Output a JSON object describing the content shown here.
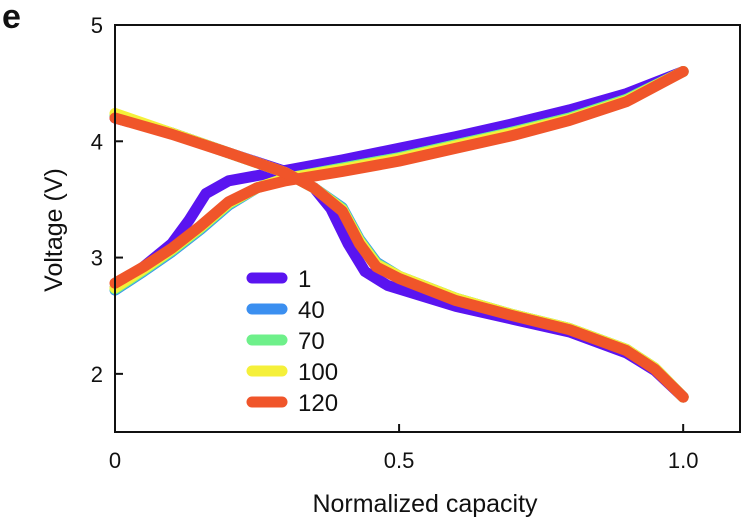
{
  "panel_label": "e",
  "chart_data": {
    "type": "line",
    "title": "",
    "xlabel": "Normalized capacity",
    "ylabel": "Voltage (V)",
    "xlim": [
      0,
      1.1
    ],
    "ylim": [
      1.5,
      5.0
    ],
    "xticks": [
      0,
      0.5,
      1.0
    ],
    "xtick_labels": [
      "0",
      "0.5",
      "1.0"
    ],
    "yticks": [
      2,
      3,
      4,
      5
    ],
    "ytick_labels": [
      "2",
      "3",
      "4",
      "5"
    ],
    "grid": false,
    "legend_position": "lower-left",
    "series": [
      {
        "name": "1",
        "color": "#5a14f0",
        "charge": [
          [
            0,
            2.74
          ],
          [
            0.05,
            2.92
          ],
          [
            0.1,
            3.12
          ],
          [
            0.13,
            3.32
          ],
          [
            0.16,
            3.55
          ],
          [
            0.2,
            3.66
          ],
          [
            0.3,
            3.75
          ],
          [
            0.4,
            3.84
          ],
          [
            0.5,
            3.94
          ],
          [
            0.6,
            4.04
          ],
          [
            0.7,
            4.15
          ],
          [
            0.8,
            4.27
          ],
          [
            0.9,
            4.41
          ],
          [
            1.0,
            4.6
          ]
        ],
        "discharge": [
          [
            0,
            4.2
          ],
          [
            0.1,
            4.07
          ],
          [
            0.2,
            3.9
          ],
          [
            0.3,
            3.74
          ],
          [
            0.35,
            3.6
          ],
          [
            0.38,
            3.42
          ],
          [
            0.41,
            3.12
          ],
          [
            0.44,
            2.88
          ],
          [
            0.48,
            2.76
          ],
          [
            0.6,
            2.58
          ],
          [
            0.7,
            2.47
          ],
          [
            0.8,
            2.36
          ],
          [
            0.9,
            2.18
          ],
          [
            0.95,
            2.03
          ],
          [
            1.0,
            1.8
          ]
        ]
      },
      {
        "name": "40",
        "color": "#3b8ff0",
        "charge": [
          [
            0,
            2.72
          ],
          [
            0.05,
            2.88
          ],
          [
            0.1,
            3.05
          ],
          [
            0.15,
            3.24
          ],
          [
            0.2,
            3.45
          ],
          [
            0.25,
            3.6
          ],
          [
            0.3,
            3.68
          ],
          [
            0.4,
            3.77
          ],
          [
            0.5,
            3.86
          ],
          [
            0.6,
            3.97
          ],
          [
            0.7,
            4.08
          ],
          [
            0.8,
            4.2
          ],
          [
            0.9,
            4.36
          ],
          [
            1.0,
            4.6
          ]
        ],
        "discharge": [
          [
            0,
            4.22
          ],
          [
            0.1,
            4.07
          ],
          [
            0.2,
            3.9
          ],
          [
            0.3,
            3.73
          ],
          [
            0.35,
            3.6
          ],
          [
            0.4,
            3.43
          ],
          [
            0.43,
            3.16
          ],
          [
            0.46,
            2.96
          ],
          [
            0.5,
            2.84
          ],
          [
            0.6,
            2.65
          ],
          [
            0.7,
            2.51
          ],
          [
            0.8,
            2.39
          ],
          [
            0.9,
            2.21
          ],
          [
            0.95,
            2.05
          ],
          [
            1.0,
            1.8
          ]
        ]
      },
      {
        "name": "70",
        "color": "#6ef08a",
        "charge": [
          [
            0,
            2.73
          ],
          [
            0.05,
            2.89
          ],
          [
            0.1,
            3.06
          ],
          [
            0.15,
            3.25
          ],
          [
            0.2,
            3.46
          ],
          [
            0.25,
            3.6
          ],
          [
            0.3,
            3.68
          ],
          [
            0.4,
            3.77
          ],
          [
            0.5,
            3.86
          ],
          [
            0.6,
            3.97
          ],
          [
            0.7,
            4.08
          ],
          [
            0.8,
            4.2
          ],
          [
            0.9,
            4.36
          ],
          [
            1.0,
            4.6
          ]
        ],
        "discharge": [
          [
            0,
            4.23
          ],
          [
            0.1,
            4.07
          ],
          [
            0.2,
            3.9
          ],
          [
            0.3,
            3.73
          ],
          [
            0.35,
            3.6
          ],
          [
            0.4,
            3.42
          ],
          [
            0.43,
            3.15
          ],
          [
            0.46,
            2.95
          ],
          [
            0.5,
            2.84
          ],
          [
            0.6,
            2.65
          ],
          [
            0.7,
            2.51
          ],
          [
            0.8,
            2.39
          ],
          [
            0.9,
            2.21
          ],
          [
            0.95,
            2.05
          ],
          [
            1.0,
            1.8
          ]
        ]
      },
      {
        "name": "100",
        "color": "#f5f03a",
        "charge": [
          [
            0,
            2.74
          ],
          [
            0.05,
            2.9
          ],
          [
            0.1,
            3.07
          ],
          [
            0.15,
            3.26
          ],
          [
            0.2,
            3.47
          ],
          [
            0.25,
            3.6
          ],
          [
            0.3,
            3.68
          ],
          [
            0.4,
            3.76
          ],
          [
            0.5,
            3.85
          ],
          [
            0.6,
            3.96
          ],
          [
            0.7,
            4.07
          ],
          [
            0.8,
            4.19
          ],
          [
            0.9,
            4.35
          ],
          [
            1.0,
            4.6
          ]
        ],
        "discharge": [
          [
            0,
            4.24
          ],
          [
            0.1,
            4.07
          ],
          [
            0.2,
            3.9
          ],
          [
            0.3,
            3.73
          ],
          [
            0.35,
            3.6
          ],
          [
            0.4,
            3.41
          ],
          [
            0.43,
            3.14
          ],
          [
            0.46,
            2.94
          ],
          [
            0.5,
            2.84
          ],
          [
            0.6,
            2.65
          ],
          [
            0.7,
            2.51
          ],
          [
            0.8,
            2.39
          ],
          [
            0.9,
            2.21
          ],
          [
            0.95,
            2.05
          ],
          [
            1.0,
            1.8
          ]
        ]
      },
      {
        "name": "120",
        "color": "#f0552a",
        "charge": [
          [
            0,
            2.78
          ],
          [
            0.05,
            2.92
          ],
          [
            0.1,
            3.08
          ],
          [
            0.15,
            3.27
          ],
          [
            0.2,
            3.48
          ],
          [
            0.25,
            3.6
          ],
          [
            0.3,
            3.66
          ],
          [
            0.4,
            3.74
          ],
          [
            0.5,
            3.83
          ],
          [
            0.6,
            3.94
          ],
          [
            0.7,
            4.05
          ],
          [
            0.8,
            4.18
          ],
          [
            0.9,
            4.34
          ],
          [
            1.0,
            4.6
          ]
        ],
        "discharge": [
          [
            0,
            4.2
          ],
          [
            0.1,
            4.06
          ],
          [
            0.2,
            3.9
          ],
          [
            0.3,
            3.73
          ],
          [
            0.35,
            3.6
          ],
          [
            0.4,
            3.4
          ],
          [
            0.43,
            3.12
          ],
          [
            0.46,
            2.92
          ],
          [
            0.5,
            2.82
          ],
          [
            0.6,
            2.63
          ],
          [
            0.7,
            2.5
          ],
          [
            0.8,
            2.38
          ],
          [
            0.9,
            2.2
          ],
          [
            0.95,
            2.04
          ],
          [
            1.0,
            1.8
          ]
        ]
      }
    ]
  }
}
